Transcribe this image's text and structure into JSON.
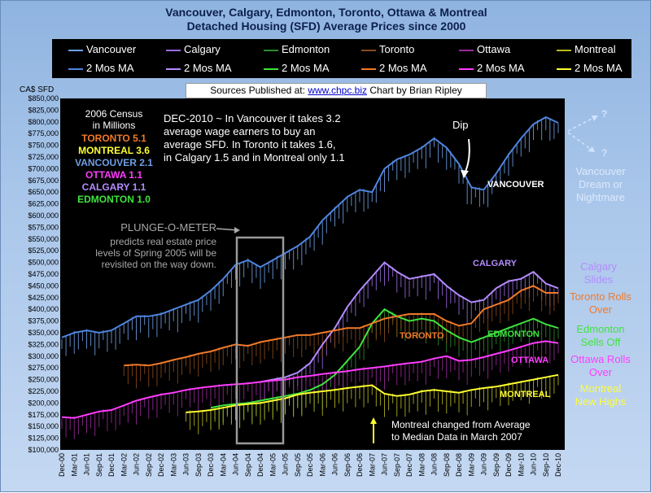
{
  "chart_data": {
    "type": "line",
    "title_line1": "Vancouver, Calgary, Edmonton, Toronto, Ottawa & Montreal",
    "title_line2": "Detached Housing (SFD) Average Prices since 2000",
    "ylabel": "CA$ SFD",
    "xlabel": "",
    "ylim": [
      100000,
      850000
    ],
    "ytick_step": 25000,
    "ytick_labels": [
      "$100,000",
      "$125,000",
      "$150,000",
      "$175,000",
      "$200,000",
      "$225,000",
      "$250,000",
      "$275,000",
      "$300,000",
      "$325,000",
      "$350,000",
      "$375,000",
      "$400,000",
      "$425,000",
      "$450,000",
      "$475,000",
      "$500,000",
      "$525,000",
      "$550,000",
      "$575,000",
      "$600,000",
      "$625,000",
      "$650,000",
      "$675,000",
      "$700,000",
      "$725,000",
      "$750,000",
      "$775,000",
      "$800,000",
      "$825,000",
      "$850,000"
    ],
    "x_range": [
      "Dec-00",
      "Dec-10"
    ],
    "xtick_labels": [
      "Dec-00",
      "Mar-01",
      "Jun-01",
      "Sep-01",
      "Dec-01",
      "Mar-02",
      "Jun-02",
      "Sep-02",
      "Dec-02",
      "Mar-03",
      "Jun-03",
      "Sep-03",
      "Dec-03",
      "Mar-04",
      "Jun-04",
      "Sep-04",
      "Dec-04",
      "Mar-05",
      "Jun-05",
      "Sep-05",
      "Dec-05",
      "Mar-06",
      "Jun-06",
      "Sep-06",
      "Dec-06",
      "Mar-07",
      "Jun-07",
      "Sep-07",
      "Dec-07",
      "Mar-08",
      "Jun-08",
      "Sep-08",
      "Dec-08",
      "Mar-09",
      "Jun-09",
      "Sep-09",
      "Dec-09",
      "Mar-10",
      "Jun-10",
      "Sep-10",
      "Dec-10"
    ],
    "legend": [
      "Vancouver",
      "Calgary",
      "Edmonton",
      "Toronto",
      "Ottawa",
      "Montreal",
      "2 Mos MA",
      "2 Mos MA",
      "2 Mos MA",
      "2 Mos MA",
      "2 Mos MA",
      "2 Mos MA"
    ],
    "legend_placement": "top",
    "grid": false,
    "sources": {
      "prefix": "Sources Published at:",
      "link": "www.chpc.biz",
      "credit": "Chart by Brian Ripley"
    },
    "colors": {
      "background": "#000000",
      "frame": "#a9c6ea"
    },
    "series": [
      {
        "name": "Vancouver",
        "bar_color": "#6f9fe6",
        "ma_color": "#4f86e0",
        "start": "Dec-00",
        "values": [
          [
            0,
            340000
          ],
          [
            3,
            350000
          ],
          [
            6,
            355000
          ],
          [
            9,
            350000
          ],
          [
            12,
            355000
          ],
          [
            15,
            370000
          ],
          [
            18,
            385000
          ],
          [
            21,
            385000
          ],
          [
            24,
            390000
          ],
          [
            27,
            400000
          ],
          [
            30,
            410000
          ],
          [
            33,
            420000
          ],
          [
            36,
            440000
          ],
          [
            39,
            465000
          ],
          [
            42,
            495000
          ],
          [
            45,
            505000
          ],
          [
            48,
            490000
          ],
          [
            51,
            505000
          ],
          [
            54,
            520000
          ],
          [
            57,
            535000
          ],
          [
            60,
            555000
          ],
          [
            63,
            590000
          ],
          [
            66,
            615000
          ],
          [
            69,
            640000
          ],
          [
            72,
            655000
          ],
          [
            75,
            650000
          ],
          [
            78,
            700000
          ],
          [
            81,
            720000
          ],
          [
            84,
            730000
          ],
          [
            87,
            745000
          ],
          [
            90,
            765000
          ],
          [
            93,
            745000
          ],
          [
            96,
            710000
          ],
          [
            99,
            660000
          ],
          [
            102,
            655000
          ],
          [
            105,
            690000
          ],
          [
            108,
            730000
          ],
          [
            111,
            765000
          ],
          [
            114,
            795000
          ],
          [
            117,
            810000
          ],
          [
            120,
            798000
          ]
        ]
      },
      {
        "name": "Calgary",
        "bar_color": "#9b6be0",
        "ma_color": "#b48cff",
        "start": "Dec-04",
        "values": [
          [
            48,
            245000
          ],
          [
            51,
            250000
          ],
          [
            54,
            255000
          ],
          [
            57,
            265000
          ],
          [
            60,
            285000
          ],
          [
            63,
            325000
          ],
          [
            66,
            360000
          ],
          [
            69,
            405000
          ],
          [
            72,
            440000
          ],
          [
            75,
            470000
          ],
          [
            78,
            500000
          ],
          [
            81,
            480000
          ],
          [
            84,
            465000
          ],
          [
            87,
            470000
          ],
          [
            90,
            475000
          ],
          [
            93,
            450000
          ],
          [
            96,
            430000
          ],
          [
            99,
            415000
          ],
          [
            102,
            420000
          ],
          [
            105,
            445000
          ],
          [
            108,
            460000
          ],
          [
            111,
            465000
          ],
          [
            114,
            480000
          ],
          [
            117,
            455000
          ],
          [
            120,
            445000
          ]
        ]
      },
      {
        "name": "Edmonton",
        "bar_color": "#2e8b2e",
        "ma_color": "#3fe33f",
        "start": "Dec-03",
        "values": [
          [
            36,
            190000
          ],
          [
            39,
            195000
          ],
          [
            42,
            198000
          ],
          [
            45,
            200000
          ],
          [
            48,
            205000
          ],
          [
            51,
            210000
          ],
          [
            54,
            215000
          ],
          [
            57,
            220000
          ],
          [
            60,
            228000
          ],
          [
            63,
            240000
          ],
          [
            66,
            260000
          ],
          [
            69,
            290000
          ],
          [
            72,
            320000
          ],
          [
            75,
            370000
          ],
          [
            78,
            400000
          ],
          [
            81,
            385000
          ],
          [
            84,
            375000
          ],
          [
            87,
            380000
          ],
          [
            90,
            375000
          ],
          [
            93,
            355000
          ],
          [
            96,
            340000
          ],
          [
            99,
            330000
          ],
          [
            102,
            340000
          ],
          [
            105,
            350000
          ],
          [
            108,
            360000
          ],
          [
            111,
            370000
          ],
          [
            114,
            380000
          ],
          [
            117,
            368000
          ],
          [
            120,
            360000
          ]
        ]
      },
      {
        "name": "Toronto",
        "bar_color": "#8a4a1a",
        "ma_color": "#f07a2a",
        "start": "Mar-02",
        "values": [
          [
            15,
            280000
          ],
          [
            18,
            282000
          ],
          [
            21,
            280000
          ],
          [
            24,
            285000
          ],
          [
            27,
            292000
          ],
          [
            30,
            298000
          ],
          [
            33,
            305000
          ],
          [
            36,
            310000
          ],
          [
            39,
            318000
          ],
          [
            42,
            325000
          ],
          [
            45,
            322000
          ],
          [
            48,
            330000
          ],
          [
            51,
            335000
          ],
          [
            54,
            340000
          ],
          [
            57,
            345000
          ],
          [
            60,
            345000
          ],
          [
            63,
            350000
          ],
          [
            66,
            355000
          ],
          [
            69,
            360000
          ],
          [
            72,
            360000
          ],
          [
            75,
            370000
          ],
          [
            78,
            380000
          ],
          [
            81,
            385000
          ],
          [
            84,
            390000
          ],
          [
            87,
            390000
          ],
          [
            90,
            390000
          ],
          [
            93,
            375000
          ],
          [
            96,
            365000
          ],
          [
            99,
            370000
          ],
          [
            102,
            400000
          ],
          [
            105,
            410000
          ],
          [
            108,
            420000
          ],
          [
            111,
            440000
          ],
          [
            114,
            450000
          ],
          [
            117,
            435000
          ],
          [
            120,
            435000
          ]
        ]
      },
      {
        "name": "Ottawa",
        "bar_color": "#9a2a9a",
        "ma_color": "#ff3cff",
        "start": "Dec-00",
        "values": [
          [
            0,
            170000
          ],
          [
            3,
            168000
          ],
          [
            6,
            175000
          ],
          [
            9,
            182000
          ],
          [
            12,
            185000
          ],
          [
            15,
            195000
          ],
          [
            18,
            205000
          ],
          [
            21,
            212000
          ],
          [
            24,
            218000
          ],
          [
            27,
            222000
          ],
          [
            30,
            228000
          ],
          [
            33,
            232000
          ],
          [
            36,
            235000
          ],
          [
            39,
            238000
          ],
          [
            42,
            240000
          ],
          [
            45,
            242000
          ],
          [
            48,
            245000
          ],
          [
            51,
            248000
          ],
          [
            54,
            250000
          ],
          [
            57,
            255000
          ],
          [
            60,
            258000
          ],
          [
            63,
            262000
          ],
          [
            66,
            265000
          ],
          [
            69,
            268000
          ],
          [
            72,
            272000
          ],
          [
            75,
            275000
          ],
          [
            78,
            278000
          ],
          [
            81,
            282000
          ],
          [
            84,
            285000
          ],
          [
            87,
            288000
          ],
          [
            90,
            295000
          ],
          [
            93,
            300000
          ],
          [
            96,
            290000
          ],
          [
            99,
            292000
          ],
          [
            102,
            298000
          ],
          [
            105,
            305000
          ],
          [
            108,
            312000
          ],
          [
            111,
            320000
          ],
          [
            114,
            328000
          ],
          [
            117,
            332000
          ],
          [
            120,
            328000
          ]
        ]
      },
      {
        "name": "Montreal",
        "bar_color": "#b8b820",
        "ma_color": "#ffff30",
        "start": "Jun-03",
        "values": [
          [
            30,
            180000
          ],
          [
            33,
            182000
          ],
          [
            36,
            185000
          ],
          [
            39,
            190000
          ],
          [
            42,
            195000
          ],
          [
            45,
            198000
          ],
          [
            48,
            200000
          ],
          [
            51,
            205000
          ],
          [
            54,
            210000
          ],
          [
            57,
            218000
          ],
          [
            60,
            222000
          ],
          [
            63,
            225000
          ],
          [
            66,
            228000
          ],
          [
            69,
            232000
          ],
          [
            72,
            235000
          ],
          [
            75,
            238000
          ],
          [
            78,
            220000
          ],
          [
            81,
            215000
          ],
          [
            84,
            218000
          ],
          [
            87,
            225000
          ],
          [
            90,
            228000
          ],
          [
            93,
            225000
          ],
          [
            96,
            222000
          ],
          [
            99,
            228000
          ],
          [
            102,
            232000
          ],
          [
            105,
            235000
          ],
          [
            108,
            240000
          ],
          [
            111,
            245000
          ],
          [
            114,
            250000
          ],
          [
            117,
            255000
          ],
          [
            120,
            260000
          ]
        ]
      }
    ]
  },
  "annotations": {
    "census": {
      "title": "2006 Census",
      "subtitle": "in Millions",
      "rows": [
        "TORONTO 5.1",
        "MONTREAL 3.6",
        "VANCOUVER 2.1",
        "OTTAWA 1.1",
        "CALGARY 1.1",
        "EDMONTON 1.0"
      ]
    },
    "dec2010": [
      "DEC-2010 ~ In Vancouver it takes 3.2",
      "average wage earners to buy an",
      "average SFD. In Toronto it takes 1.6,",
      "in Calgary 1.5 and in Montreal only 1.1"
    ],
    "plunge": [
      "PLUNGE-O-METER",
      "predicts real estate price",
      "levels of Spring 2005 will be",
      "revisited on the way down."
    ],
    "dip": "Dip",
    "question_up": "?",
    "question_down": "?",
    "series_labels": {
      "vancouver": "VANCOUVER",
      "calgary": "CALGARY",
      "toronto": "TORONTO",
      "edmonton": "EDMONTON",
      "ottawa": "OTTAWA",
      "montreal": "MONTREAL"
    },
    "side": {
      "vancouver": "Vancouver Dream or Nightmare",
      "calgary": "Calgary Slides",
      "toronto": "Toronto Rolls Over",
      "edmonton": "Edmonton Sells Off",
      "ottawa": "Ottawa Rolls Over",
      "montreal": "Montreal New Highs"
    },
    "montreal_note": [
      "Montreal changed from Average",
      "to Median Data  in March 2007"
    ]
  }
}
